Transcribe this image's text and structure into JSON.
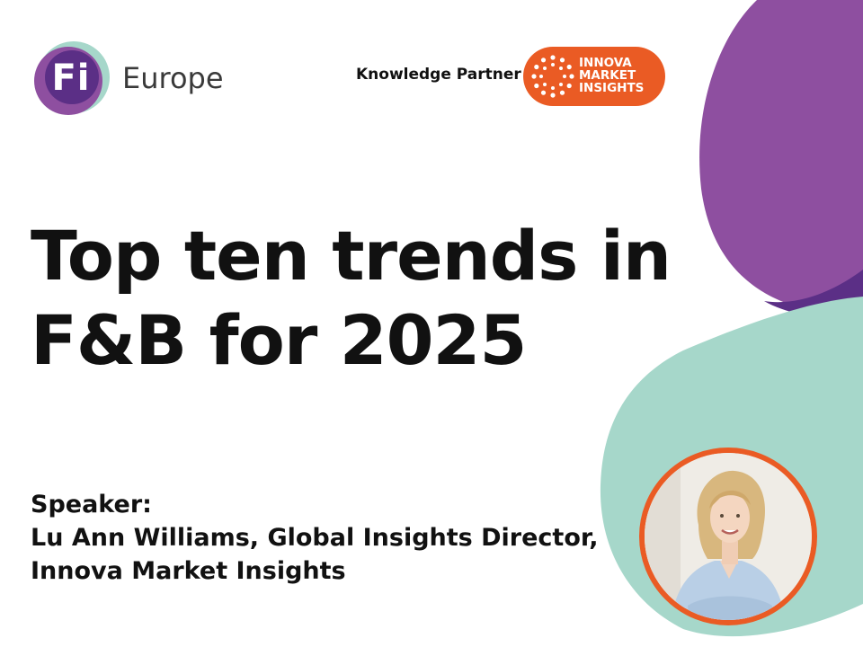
{
  "colors": {
    "purple": "#8e4fa0",
    "purple_dark": "#5b2f86",
    "teal": "#a6d7ca",
    "orange": "#ea5b24",
    "text": "#111111"
  },
  "logo": {
    "mark_text": "Fi",
    "word": "Europe"
  },
  "partner": {
    "label": "Knowledge Partner",
    "badge_lines": [
      "INNOVA",
      "MARKET",
      "INSIGHTS"
    ]
  },
  "title": {
    "line1": "Top ten trends in",
    "line2": "F&B for 2025"
  },
  "speaker": {
    "heading": "Speaker:",
    "line1": "Lu Ann Williams, Global Insights Director,",
    "line2": "Innova Market Insights"
  },
  "portrait": {
    "icon": "speaker-portrait"
  }
}
